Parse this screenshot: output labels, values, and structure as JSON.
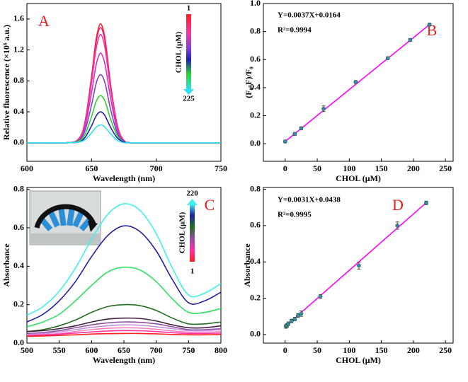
{
  "chart_data": [
    {
      "type": "line",
      "panel_label": "A",
      "xlabel": "Wavelength (nm)",
      "ylabel": "Relative fluorescence (×10⁶ a.u.)",
      "x": [
        600,
        630,
        640,
        645,
        650,
        653,
        655,
        657,
        659,
        661,
        665,
        670,
        675,
        680,
        700,
        750
      ],
      "series": [
        {
          "color": "#ff2020",
          "values": [
            0,
            0,
            0.05,
            0.28,
            0.86,
            1.28,
            1.46,
            1.54,
            1.46,
            1.28,
            0.72,
            0.22,
            0.03,
            0,
            0,
            0
          ]
        },
        {
          "color": "#f0207a",
          "values": [
            0,
            0,
            0.04,
            0.27,
            0.83,
            1.24,
            1.42,
            1.49,
            1.42,
            1.24,
            0.7,
            0.21,
            0.03,
            0,
            0,
            0
          ]
        },
        {
          "color": "#ee3aa0",
          "values": [
            0,
            0,
            0.04,
            0.25,
            0.78,
            1.16,
            1.33,
            1.4,
            1.33,
            1.16,
            0.66,
            0.2,
            0.03,
            0,
            0,
            0
          ]
        },
        {
          "color": "#d030c8",
          "values": [
            0,
            0,
            0.03,
            0.21,
            0.65,
            0.96,
            1.1,
            1.16,
            1.1,
            0.96,
            0.55,
            0.16,
            0.02,
            0,
            0,
            0
          ]
        },
        {
          "color": "#8040d0",
          "values": [
            0,
            0,
            0.03,
            0.16,
            0.49,
            0.73,
            0.84,
            0.88,
            0.84,
            0.73,
            0.41,
            0.12,
            0.02,
            0,
            0,
            0
          ]
        },
        {
          "color": "#30d030",
          "values": [
            0,
            0,
            0.02,
            0.11,
            0.34,
            0.51,
            0.58,
            0.61,
            0.58,
            0.51,
            0.29,
            0.09,
            0.01,
            0,
            0,
            0
          ]
        },
        {
          "color": "#2020b0",
          "values": [
            0,
            0,
            0.01,
            0.07,
            0.22,
            0.33,
            0.38,
            0.4,
            0.38,
            0.33,
            0.19,
            0.06,
            0.01,
            0,
            0,
            0
          ]
        },
        {
          "color": "#30e0f0",
          "values": [
            0,
            0,
            0.01,
            0.04,
            0.13,
            0.19,
            0.22,
            0.23,
            0.22,
            0.19,
            0.11,
            0.03,
            0,
            0,
            0,
            0
          ]
        }
      ],
      "xlim": [
        600,
        750
      ],
      "xticks": [
        600,
        650,
        700,
        750
      ],
      "ylim": [
        -0.24,
        1.8
      ],
      "yticks": [
        {
          "value": 0,
          "label": "0.0"
        },
        0.4,
        0.8,
        1.2,
        1.6
      ],
      "colorbar": {
        "top": "1",
        "bottom": "225",
        "label": "CHOL (μM)"
      }
    },
    {
      "type": "scatter",
      "panel_label": "B",
      "xlabel": "CHOL (μM)",
      "ylabel": "(F₀-F)/F₀",
      "equation": "Y=0.0037X+0.0164",
      "r_squared": "R²=0.9994",
      "x": [
        0,
        15,
        25,
        60,
        110,
        160,
        195,
        225
      ],
      "values": [
        0.016,
        0.07,
        0.11,
        0.25,
        0.44,
        0.61,
        0.74,
        0.85
      ],
      "errors": [
        0.01,
        0.01,
        0.01,
        0.02,
        0.01,
        0.01,
        0.01,
        0.01
      ],
      "color": "#3090a0",
      "fit_line": {
        "x": [
          0,
          228
        ],
        "values": [
          0.0164,
          0.86
        ],
        "color": "#ff00ff"
      },
      "xlim": [
        -34,
        262
      ],
      "xticks": [
        0,
        50,
        100,
        150,
        200,
        250
      ],
      "ylim": [
        -0.125,
        1.0
      ],
      "yticks": [
        {
          "value": 0,
          "label": "0.0"
        },
        0.2,
        0.4,
        0.6,
        0.8,
        {
          "value": 1,
          "label": "1.0"
        }
      ]
    },
    {
      "type": "line",
      "panel_label": "C",
      "xlabel": "Wavelength (nm)",
      "ylabel": "Absorbance",
      "x": [
        500,
        525,
        550,
        575,
        600,
        625,
        650,
        675,
        700,
        725,
        750,
        775,
        800
      ],
      "series": [
        {
          "color": "#40f0f0",
          "values": [
            0.145,
            0.19,
            0.27,
            0.39,
            0.54,
            0.67,
            0.725,
            0.69,
            0.57,
            0.39,
            0.25,
            0.26,
            0.31
          ]
        },
        {
          "color": "#2020a0",
          "values": [
            0.11,
            0.15,
            0.22,
            0.32,
            0.45,
            0.56,
            0.61,
            0.58,
            0.48,
            0.33,
            0.21,
            0.22,
            0.265
          ]
        },
        {
          "color": "#30e060",
          "values": [
            0.085,
            0.11,
            0.15,
            0.22,
            0.3,
            0.37,
            0.395,
            0.38,
            0.32,
            0.23,
            0.16,
            0.16,
            0.18
          ]
        },
        {
          "color": "#207020",
          "values": [
            0.06,
            0.07,
            0.09,
            0.12,
            0.16,
            0.19,
            0.2,
            0.195,
            0.17,
            0.13,
            0.1,
            0.1,
            0.11
          ]
        },
        {
          "color": "#402040",
          "values": [
            0.06,
            0.065,
            0.075,
            0.09,
            0.11,
            0.125,
            0.13,
            0.128,
            0.115,
            0.095,
            0.08,
            0.08,
            0.09
          ]
        },
        {
          "color": "#9050a0",
          "values": [
            0.05,
            0.055,
            0.065,
            0.08,
            0.095,
            0.105,
            0.11,
            0.108,
            0.1,
            0.085,
            0.07,
            0.07,
            0.075
          ]
        },
        {
          "color": "#c090e0",
          "values": [
            0.045,
            0.05,
            0.058,
            0.07,
            0.082,
            0.09,
            0.095,
            0.093,
            0.085,
            0.075,
            0.065,
            0.065,
            0.07
          ]
        },
        {
          "color": "#ff80c0",
          "values": [
            0.04,
            0.045,
            0.05,
            0.06,
            0.07,
            0.077,
            0.08,
            0.078,
            0.072,
            0.063,
            0.057,
            0.057,
            0.06
          ]
        },
        {
          "color": "#ff30a0",
          "values": [
            0.04,
            0.042,
            0.046,
            0.052,
            0.058,
            0.063,
            0.065,
            0.064,
            0.06,
            0.054,
            0.05,
            0.05,
            0.052
          ]
        },
        {
          "color": "#ff2020",
          "values": [
            0.035,
            0.037,
            0.04,
            0.043,
            0.047,
            0.049,
            0.05,
            0.05,
            0.048,
            0.045,
            0.043,
            0.043,
            0.045
          ]
        }
      ],
      "xlim": [
        500,
        800
      ],
      "xticks": [
        500,
        550,
        600,
        650,
        700,
        750,
        800
      ],
      "ylim": [
        0,
        0.81
      ],
      "yticks": [
        {
          "value": 0,
          "label": "0.0"
        },
        0.2,
        0.4,
        0.6,
        0.8
      ],
      "colorbar": {
        "top": "220",
        "bottom": "1",
        "label": "CHOL (μM)"
      }
    },
    {
      "type": "scatter",
      "panel_label": "D",
      "xlabel": "CHOL (μM)",
      "ylabel": "Absorbance",
      "equation": "Y=0.0031X+0.0438",
      "r_squared": "R²=0.9995",
      "x": [
        1,
        3,
        5,
        10,
        15,
        20,
        25,
        55,
        115,
        175,
        220
      ],
      "values": [
        0.045,
        0.05,
        0.06,
        0.075,
        0.085,
        0.105,
        0.115,
        0.21,
        0.38,
        0.6,
        0.725
      ],
      "errors": [
        0.01,
        0.01,
        0.01,
        0.01,
        0.01,
        0.01,
        0.015,
        0.01,
        0.02,
        0.02,
        0.01
      ],
      "color": "#3090a0",
      "fit_line": {
        "x": [
          0,
          220
        ],
        "values": [
          0.0438,
          0.726
        ],
        "color": "#ff00ff"
      },
      "xlim": [
        -34,
        262
      ],
      "xticks": [
        0,
        50,
        100,
        150,
        200,
        250
      ],
      "ylim": [
        -0.047,
        0.81
      ],
      "yticks": [
        {
          "value": 0,
          "label": "0.0"
        },
        0.2,
        0.4,
        0.6,
        0.8
      ]
    }
  ]
}
